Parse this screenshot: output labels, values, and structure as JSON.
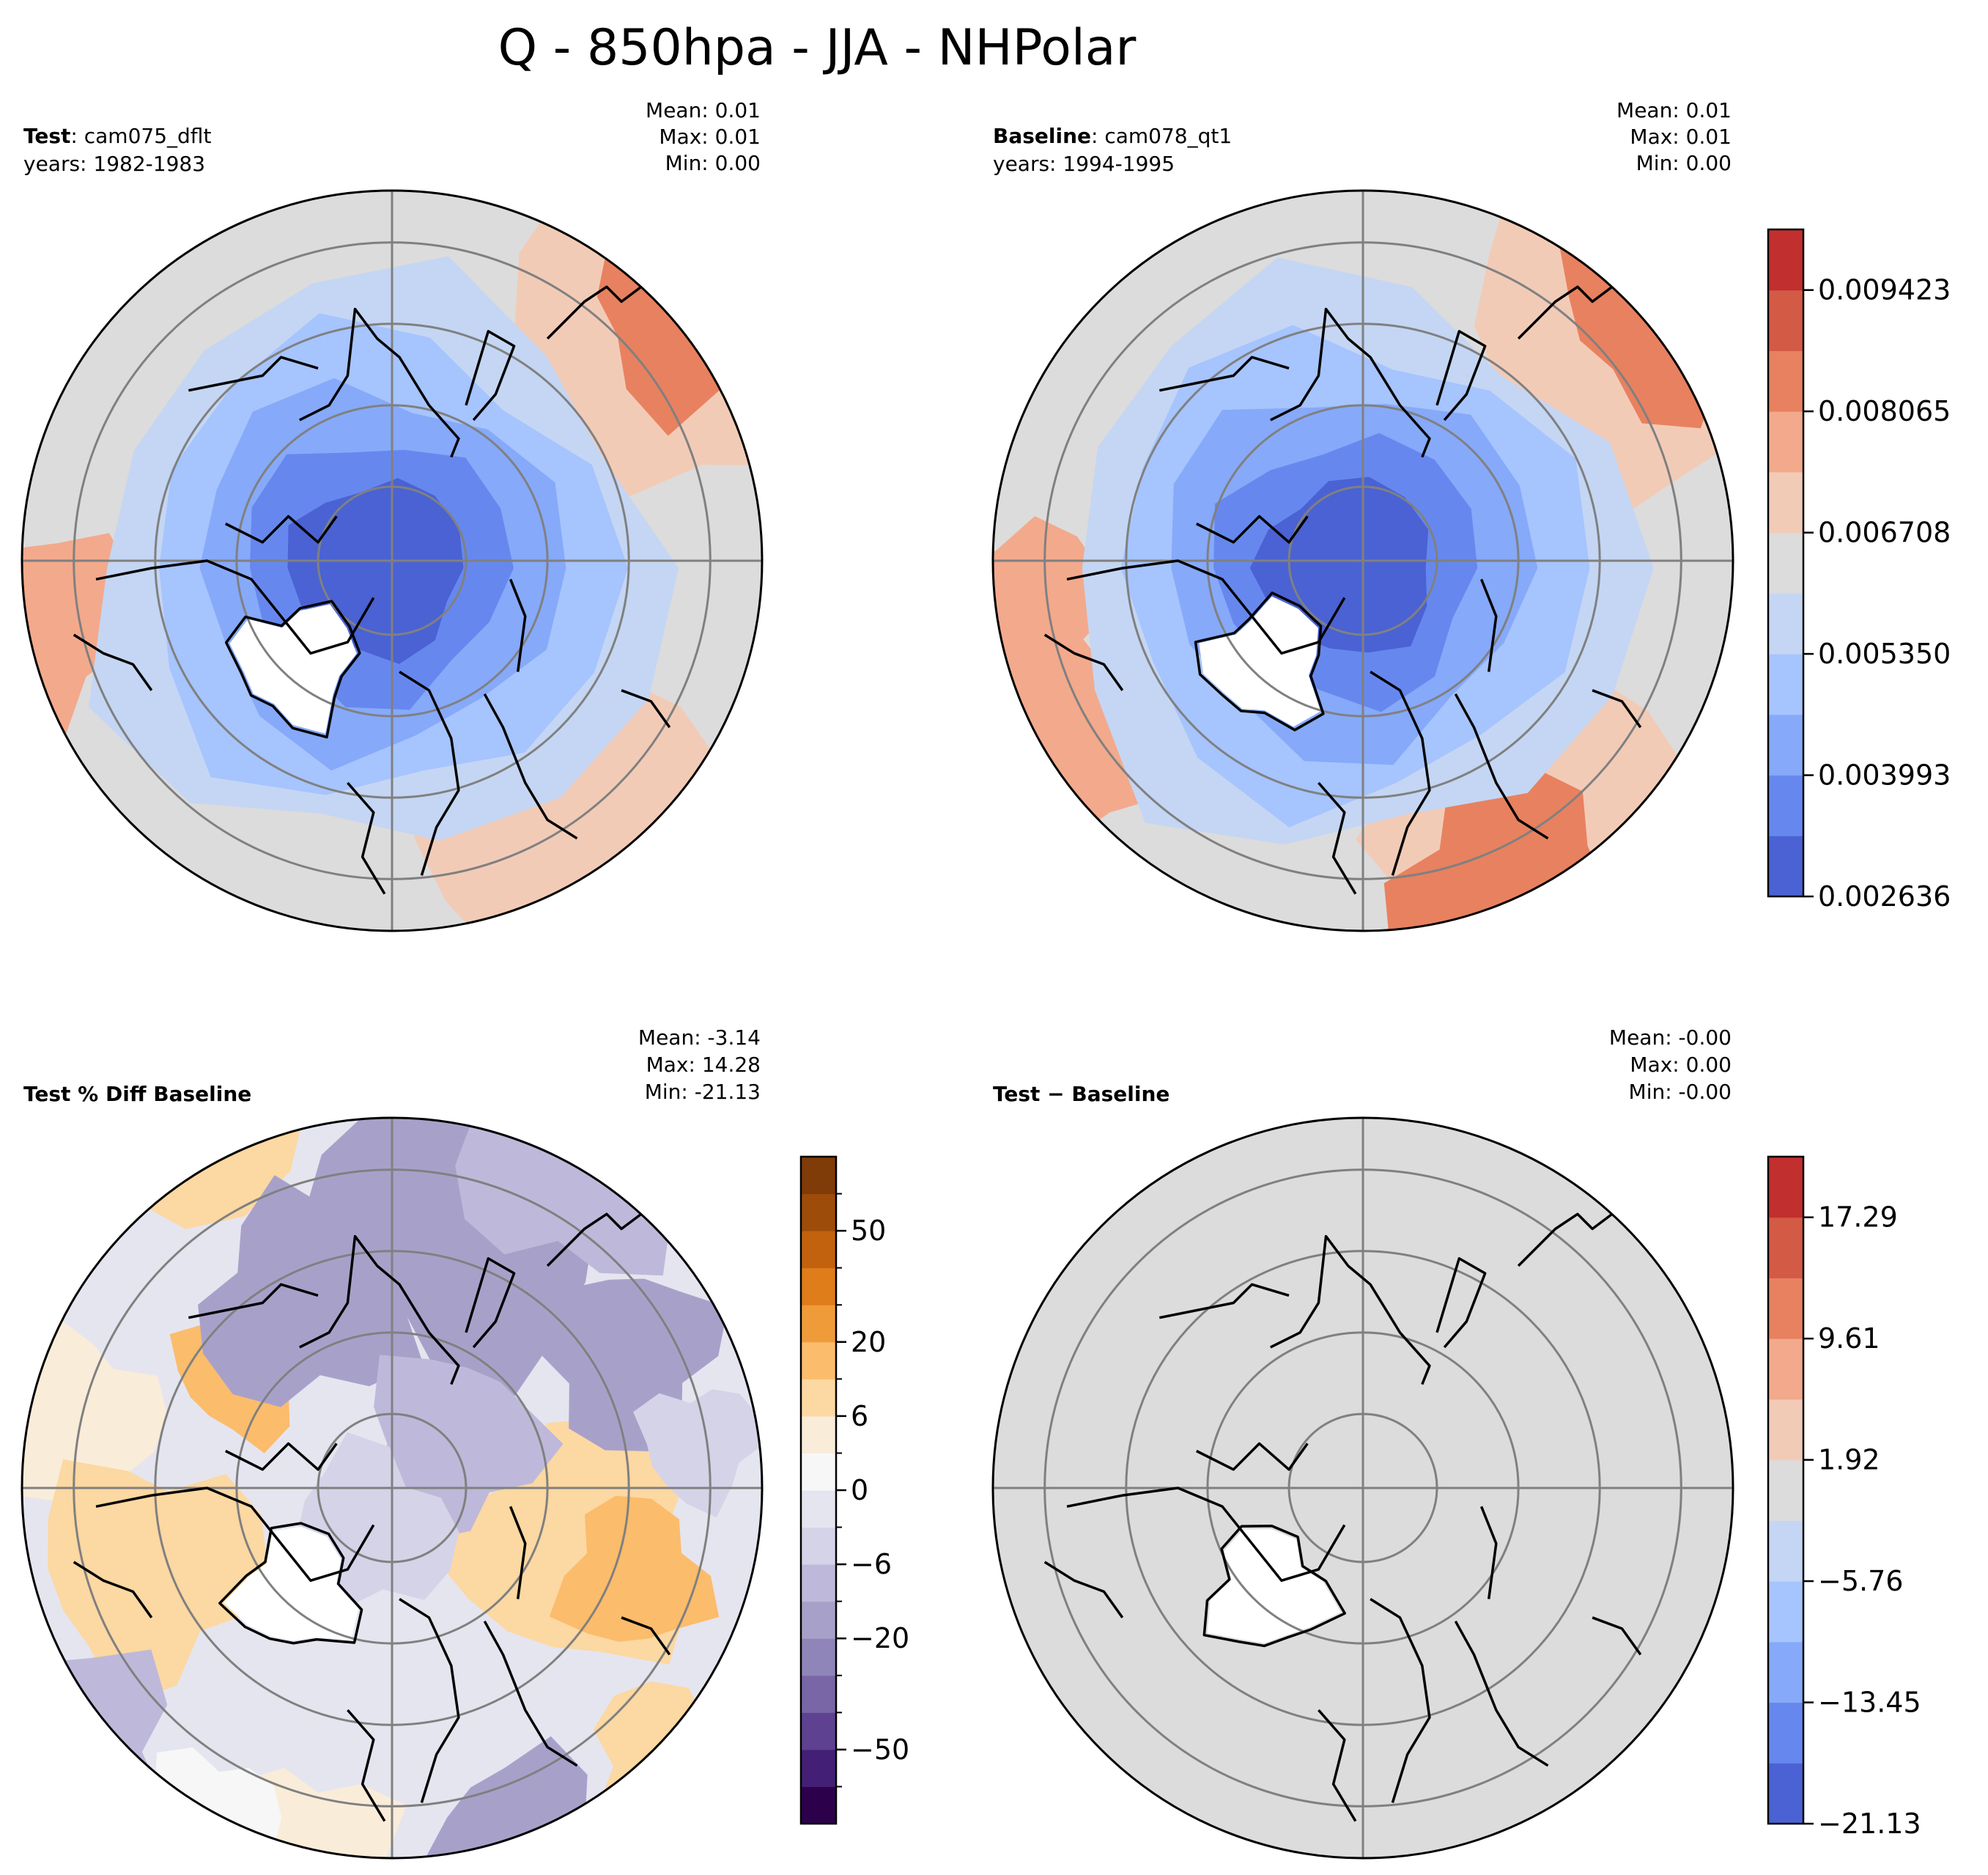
{
  "title": "Q - 850hpa - JJA - NHPolar",
  "panels": [
    {
      "key": "test",
      "label_bold": "Test",
      "label_rest": ": cam075_dflt",
      "years": "years: 1982-1983",
      "stats": [
        "Mean:  0.01",
        "Max:  0.01",
        "Min:  0.00"
      ],
      "style": "value"
    },
    {
      "key": "baseline",
      "label_bold": "Baseline",
      "label_rest": ": cam078_qt1",
      "years": "years: 1994-1995",
      "stats": [
        "Mean:  0.01",
        "Max:  0.01",
        "Min:  0.00"
      ],
      "style": "value"
    },
    {
      "key": "pctdiff",
      "label_bold": "Test % Diff Baseline",
      "label_rest": "",
      "years": "",
      "stats": [
        "Mean: -3.14",
        "Max: 14.28",
        "Min: -21.13"
      ],
      "style": "pct"
    },
    {
      "key": "diff",
      "label_bold": "Test − Baseline",
      "label_rest": "",
      "years": "",
      "stats": [
        "Mean: -0.00",
        "Max:  0.00",
        "Min: -0.00"
      ],
      "style": "diff"
    }
  ],
  "colorbars": [
    {
      "key": "values",
      "ticks": [
        "0.002636",
        "0.003993",
        "0.005350",
        "0.006708",
        "0.008065",
        "0.009423"
      ],
      "colors": [
        "#4a62d3",
        "#6688ee",
        "#86a9f9",
        "#a6c4fd",
        "#c4d6f3",
        "#dcdcdc",
        "#f2cbb7",
        "#f3a98c",
        "#e8815f",
        "#d35a45",
        "#c12f2e"
      ]
    },
    {
      "key": "pct",
      "ticks": [
        "−50",
        "−20",
        "−6",
        "0",
        "6",
        "20",
        "50"
      ],
      "colors": [
        "#2d004b",
        "#432075",
        "#5e4291",
        "#7866a6",
        "#8f85b8",
        "#a7a1ca",
        "#beb9da",
        "#d5d3e8",
        "#e5e5f0",
        "#f7f7f7",
        "#f9ecd9",
        "#fcd8a2",
        "#fbbc6c",
        "#f09b3a",
        "#de7d19",
        "#c2620e",
        "#9e4c09",
        "#7f3b08"
      ]
    },
    {
      "key": "diff",
      "ticks": [
        "−21.13",
        "−13.45",
        "−5.76",
        "1.92",
        "9.61",
        "17.29"
      ],
      "colors": [
        "#4a62d3",
        "#6688ee",
        "#86a9f9",
        "#a6c4fd",
        "#c4d6f3",
        "#dcdcdc",
        "#f2cbb7",
        "#f3a98c",
        "#e8815f",
        "#d35a45",
        "#c12f2e"
      ]
    }
  ]
}
